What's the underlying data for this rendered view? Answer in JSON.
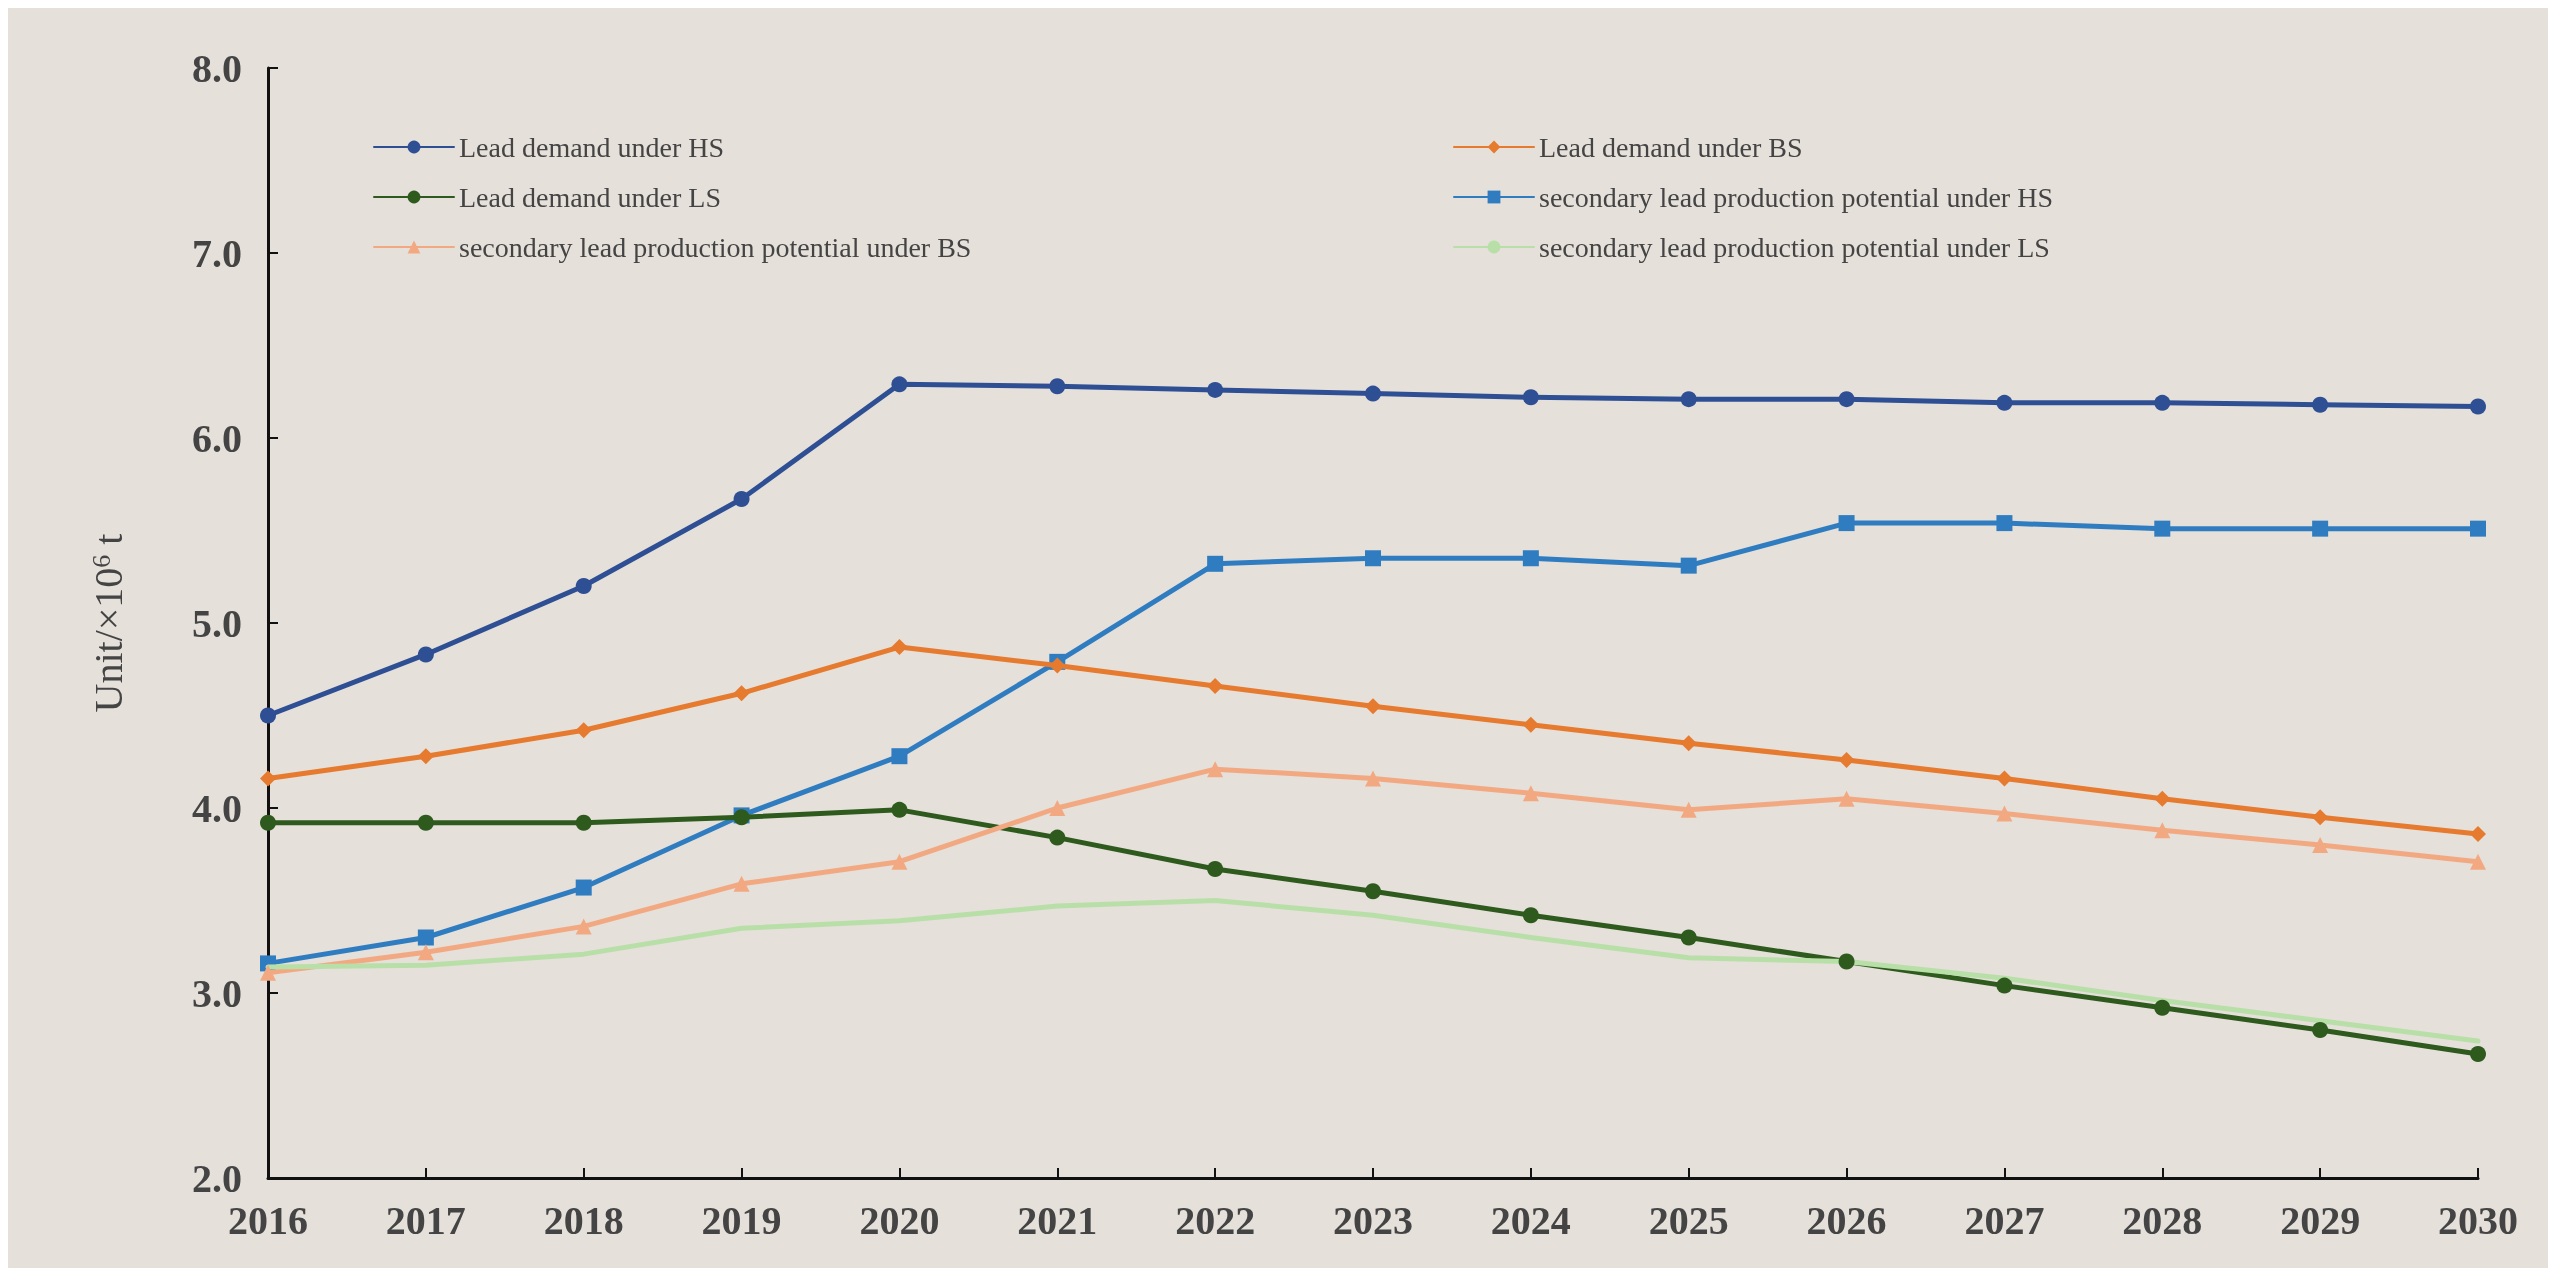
{
  "chart_data": {
    "type": "line",
    "ylabel": "Unit/×10$^{6}$ t",
    "categories": [
      "2016",
      "2017",
      "2018",
      "2019",
      "2020",
      "2021",
      "2022",
      "2023",
      "2024",
      "2025",
      "2026",
      "2027",
      "2028",
      "2029",
      "2030"
    ],
    "ylim": [
      2,
      8
    ],
    "yticks": [
      {
        "value": 2,
        "label": "2.0"
      },
      {
        "value": 3,
        "label": "3.0"
      },
      {
        "value": 4,
        "label": "4.0"
      },
      {
        "value": 5,
        "label": "5.0"
      },
      {
        "value": 6,
        "label": "6.0"
      },
      {
        "value": 7,
        "label": "7.0"
      },
      {
        "value": 8,
        "label": "8.0"
      }
    ],
    "grid": false,
    "legend": "top",
    "series": [
      {
        "name": "Lead demand under HS",
        "color": "#2f4f94",
        "marker": "circle",
        "values": [
          4.5,
          4.83,
          5.2,
          5.67,
          6.29,
          6.28,
          6.26,
          6.24,
          6.22,
          6.21,
          6.21,
          6.19,
          6.19,
          6.18,
          6.17
        ]
      },
      {
        "name": "Lead demand under BS",
        "color": "#e67a2e",
        "marker": "diamond",
        "values": [
          4.16,
          4.28,
          4.42,
          4.62,
          4.87,
          4.77,
          4.66,
          4.55,
          4.45,
          4.35,
          4.26,
          4.16,
          4.05,
          3.95,
          3.86
        ]
      },
      {
        "name": "Lead demand under LS",
        "color": "#2e5a1e",
        "marker": "circle",
        "values": [
          3.92,
          3.92,
          3.92,
          3.95,
          3.99,
          3.84,
          3.67,
          3.55,
          3.42,
          3.3,
          3.17,
          3.04,
          2.92,
          2.8,
          2.67
        ]
      },
      {
        "name": "secondary lead production potential under HS",
        "color": "#2f7dc0",
        "marker": "square",
        "values": [
          3.16,
          3.3,
          3.57,
          3.96,
          4.28,
          4.79,
          5.32,
          5.35,
          5.35,
          5.31,
          5.54,
          5.54,
          5.51,
          5.51,
          5.51
        ]
      },
      {
        "name": "secondary lead production potential under BS",
        "color": "#f2a982",
        "marker": "triangle",
        "values": [
          3.11,
          3.22,
          3.36,
          3.59,
          3.71,
          4.0,
          4.21,
          4.16,
          4.08,
          3.99,
          4.05,
          3.97,
          3.88,
          3.8,
          3.71
        ]
      },
      {
        "name": "secondary lead production potential under LS",
        "color": "#b9dfa8",
        "marker": "none",
        "values": [
          3.14,
          3.15,
          3.21,
          3.35,
          3.39,
          3.47,
          3.5,
          3.42,
          3.3,
          3.19,
          3.17,
          3.08,
          2.96,
          2.85,
          2.74
        ]
      }
    ]
  }
}
